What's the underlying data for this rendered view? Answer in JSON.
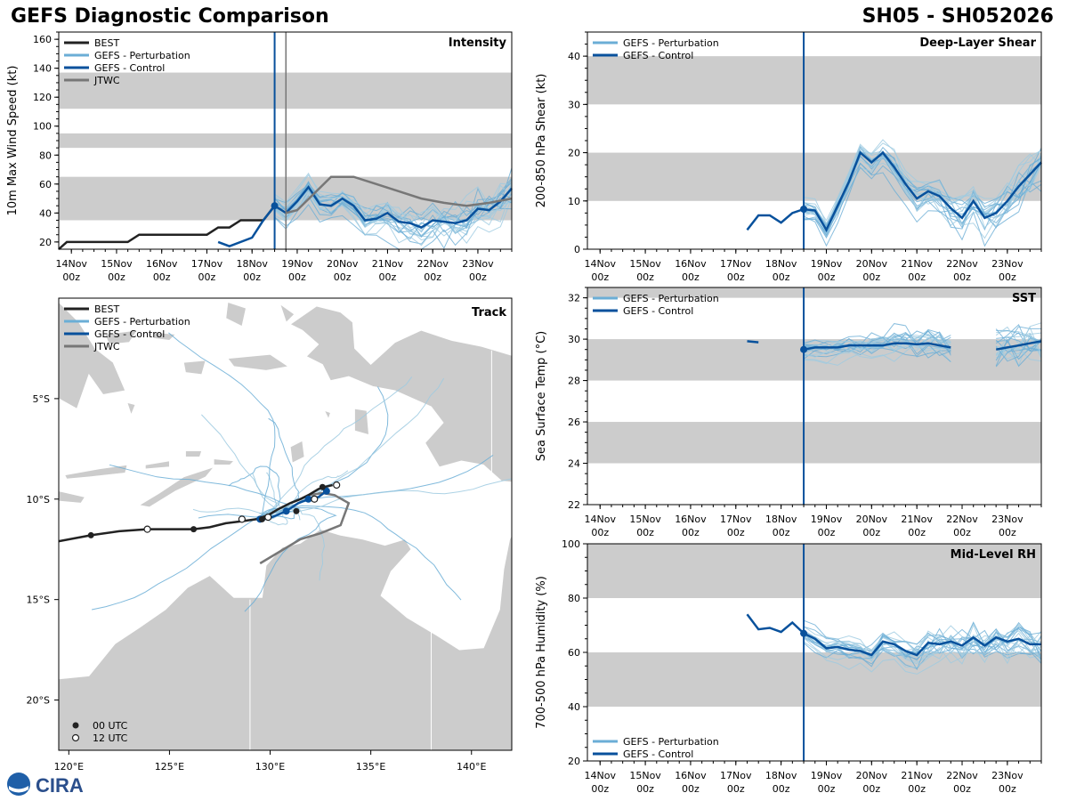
{
  "header": {
    "title": "GEFS Diagnostic Comparison",
    "storm_id": "SH05 - SH052026"
  },
  "logo": {
    "text": "CIRA",
    "icon": "noaa-logo-icon"
  },
  "colors": {
    "best": "#222222",
    "perturbation": "#6baed6",
    "control": "#08519c",
    "jtwc": "#777777",
    "band": "#cccccc",
    "land": "#cccccc"
  },
  "time_axis": {
    "dates": [
      "14Nov",
      "15Nov",
      "16Nov",
      "17Nov",
      "18Nov",
      "19Nov",
      "20Nov",
      "21Nov",
      "22Nov",
      "23Nov"
    ],
    "hour": "00z",
    "start_day": 13.72,
    "end_day": 23.75,
    "init_day": 18.5
  },
  "chart_data": [
    {
      "id": "intensity",
      "type": "line",
      "title": "Intensity",
      "ylabel": "10m Max Wind Speed (kt)",
      "ylim": [
        15,
        165
      ],
      "yticks": [
        20,
        40,
        60,
        80,
        100,
        120,
        140,
        160
      ],
      "bands": [
        [
          35,
          65
        ],
        [
          85,
          95
        ],
        [
          112,
          137
        ]
      ],
      "jtwc_init_day": 18.75,
      "legend": [
        "BEST",
        "GEFS - Perturbation",
        "GEFS - Control",
        "JTWC"
      ],
      "series": [
        {
          "name": "BEST",
          "x": [
            13.72,
            13.9,
            14,
            14.5,
            15,
            15.25,
            15.5,
            16,
            16.5,
            17,
            17.25,
            17.5,
            17.75,
            18,
            18.25,
            18.5
          ],
          "y": [
            15,
            20,
            20,
            20,
            20,
            20,
            25,
            25,
            25,
            25,
            30,
            30,
            35,
            35,
            35,
            45
          ]
        },
        {
          "name": "GEFS - Control",
          "x": [
            17.25,
            17.5,
            18,
            18.25,
            18.5,
            18.75,
            19,
            19.25,
            19.5,
            19.75,
            20,
            20.25,
            20.5,
            20.75,
            21,
            21.25,
            21.5,
            21.75,
            22,
            22.25,
            22.5,
            22.75,
            23,
            23.25,
            23.5,
            23.75
          ],
          "y": [
            20,
            17,
            23,
            35,
            45,
            40,
            48,
            58,
            46,
            45,
            50,
            45,
            35,
            36,
            40,
            34,
            33,
            30,
            35,
            34,
            33,
            35,
            43,
            42,
            48,
            57
          ]
        },
        {
          "name": "JTWC",
          "x": [
            18.75,
            19,
            19.75,
            20.25,
            20.75,
            21.25,
            21.75,
            22.25,
            22.75,
            23.25,
            23.75
          ],
          "y": [
            40,
            42,
            65,
            65,
            60,
            55,
            50,
            47,
            45,
            47,
            50
          ]
        }
      ]
    },
    {
      "id": "shear",
      "type": "line",
      "title": "Deep-Layer Shear",
      "ylabel": "200-850 hPa Shear (kt)",
      "ylim": [
        0,
        45
      ],
      "yticks": [
        0,
        10,
        20,
        30,
        40
      ],
      "bands": [
        [
          10,
          20
        ],
        [
          30,
          40
        ]
      ],
      "legend": [
        "GEFS - Perturbation",
        "GEFS - Control"
      ],
      "series": [
        {
          "name": "GEFS - Control",
          "x": [
            17.25,
            17.5,
            17.75,
            18,
            18.25,
            18.5,
            18.75,
            19,
            19.25,
            19.5,
            19.75,
            20,
            20.25,
            20.5,
            20.75,
            21,
            21.25,
            21.5,
            21.75,
            22,
            22.25,
            22.5,
            22.75,
            23,
            23.25,
            23.5,
            23.75
          ],
          "y": [
            4,
            7,
            7,
            5.5,
            7.5,
            8.3,
            8,
            4,
            9,
            14,
            20,
            18,
            20,
            17,
            13.5,
            10.5,
            12,
            11,
            8.5,
            6.5,
            10,
            6.5,
            7.5,
            10,
            13,
            15.5,
            18
          ]
        }
      ]
    },
    {
      "id": "sst",
      "type": "line",
      "title": "SST",
      "ylabel": "Sea Surface Temp (°C)",
      "ylim": [
        22,
        32.5
      ],
      "yticks": [
        22,
        24,
        26,
        28,
        30,
        32
      ],
      "bands": [
        [
          24,
          26
        ],
        [
          28,
          30
        ],
        [
          32,
          32.5
        ]
      ],
      "legend": [
        "GEFS - Perturbation",
        "GEFS - Control"
      ],
      "series": [
        {
          "name": "GEFS - Control",
          "x": [
            17.25,
            17.5,
            18.25,
            18.5,
            18.75,
            19,
            19.25,
            19.5,
            19.75,
            20,
            20.25,
            20.5,
            20.75,
            21,
            21.25,
            21.5,
            21.75,
            22,
            22.25,
            22.5,
            22.75,
            23,
            23.25,
            23.5,
            23.75
          ],
          "y": [
            29.9,
            29.85,
            null,
            29.5,
            29.6,
            29.6,
            29.6,
            29.7,
            29.7,
            29.7,
            29.7,
            29.8,
            29.8,
            29.75,
            29.8,
            29.7,
            29.6,
            null,
            null,
            null,
            29.5,
            29.6,
            29.7,
            29.8,
            29.9
          ]
        }
      ]
    },
    {
      "id": "rh",
      "type": "line",
      "title": "Mid-Level RH",
      "ylabel": "700-500 hPa Humidity (%)",
      "ylim": [
        20,
        100
      ],
      "yticks": [
        20,
        40,
        60,
        80,
        100
      ],
      "bands": [
        [
          40,
          60
        ],
        [
          80,
          100
        ]
      ],
      "legend": [
        "GEFS - Perturbation",
        "GEFS - Control"
      ],
      "series": [
        {
          "name": "GEFS - Control",
          "x": [
            17.25,
            17.5,
            17.75,
            18,
            18.25,
            18.5,
            18.75,
            19,
            19.25,
            19.5,
            19.75,
            20,
            20.25,
            20.5,
            20.75,
            21,
            21.25,
            21.5,
            21.75,
            22,
            22.25,
            22.5,
            22.75,
            23,
            23.25,
            23.5,
            23.75
          ],
          "y": [
            74,
            68.5,
            69,
            67.5,
            71,
            67,
            65,
            61.5,
            62,
            61,
            60.5,
            59,
            64,
            63,
            60.5,
            59,
            63.5,
            63,
            64,
            62.5,
            65.5,
            62.5,
            65.5,
            64,
            65,
            63,
            63
          ]
        }
      ]
    },
    {
      "id": "track",
      "type": "scatter",
      "title": "Track",
      "xlim": [
        119.5,
        142
      ],
      "ylim": [
        -22.5,
        0
      ],
      "xticks": [
        120,
        125,
        130,
        135,
        140
      ],
      "xtick_labels": [
        "120°E",
        "125°E",
        "130°E",
        "135°E",
        "140°E"
      ],
      "yticks": [
        -5,
        -10,
        -15,
        -20
      ],
      "ytick_labels": [
        "5°S",
        "10°S",
        "15°S",
        "20°S"
      ],
      "legend": [
        "BEST",
        "GEFS - Perturbation",
        "GEFS - Control",
        "JTWC"
      ],
      "marker_legend": [
        "00 UTC",
        "12 UTC"
      ],
      "series": [
        {
          "name": "BEST",
          "lon": [
            119.5,
            121.1,
            122.5,
            123.9,
            125.2,
            126.2,
            127.0,
            127.8,
            128.6,
            129.3,
            129.9,
            130.4,
            131.0,
            131.5,
            131.9,
            132.4,
            132.7,
            133.1
          ],
          "lat": [
            -12.1,
            -11.8,
            -11.6,
            -11.5,
            -11.5,
            -11.5,
            -11.4,
            -11.2,
            -11.1,
            -11.0,
            -10.8,
            -10.5,
            -10.2,
            -10.0,
            -9.8,
            -9.5,
            -9.4,
            -9.3
          ]
        },
        {
          "name": "GEFS - Control",
          "lon": [
            129.5,
            130.1,
            130.8,
            131.4,
            131.9,
            132.4,
            132.8
          ],
          "lat": [
            -11.0,
            -10.9,
            -10.6,
            -10.2,
            -10.0,
            -9.9,
            -9.6
          ]
        },
        {
          "name": "JTWC",
          "lon": [
            129.5,
            130.5,
            131.5,
            132.5,
            133.5,
            133.9,
            133.2,
            132.6,
            131.9
          ],
          "lat": [
            -13.2,
            -12.6,
            -12.0,
            -11.7,
            -11.3,
            -10.2,
            -9.8,
            -9.7,
            -9.8
          ]
        },
        {
          "name": "BEST 00 UTC",
          "lon": [
            121.1,
            126.2,
            129.6,
            131.3,
            132.6
          ],
          "lat": [
            -11.8,
            -11.5,
            -11.0,
            -10.6,
            -9.4
          ]
        },
        {
          "name": "BEST 12 UTC",
          "lon": [
            123.9,
            128.6,
            129.9,
            132.2,
            133.3
          ],
          "lat": [
            -11.5,
            -11.0,
            -10.9,
            -10.0,
            -9.3
          ]
        }
      ]
    }
  ]
}
